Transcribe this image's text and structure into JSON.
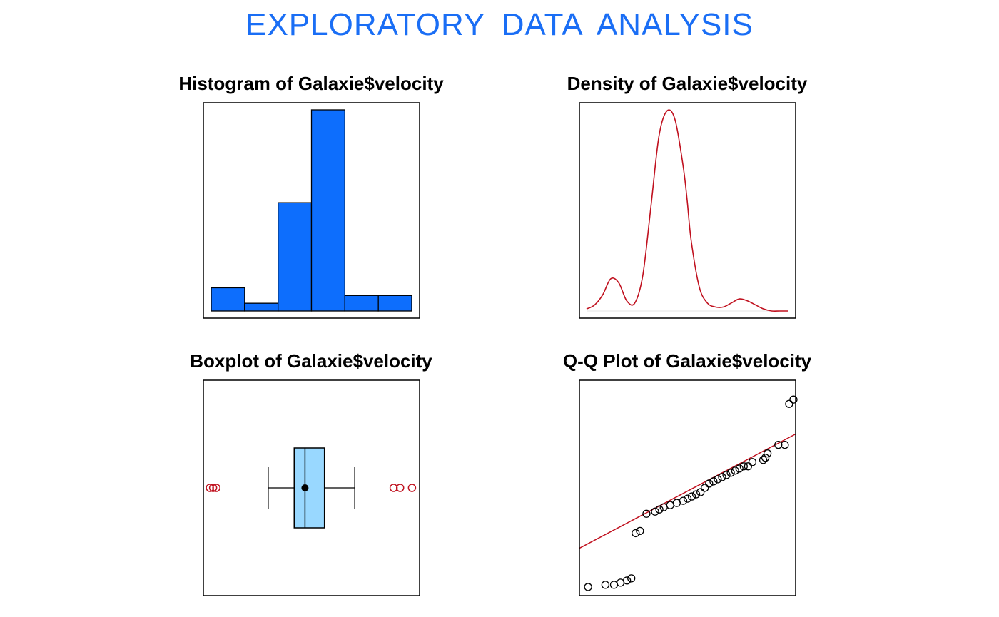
{
  "page": {
    "title": "EXPLORATORY  DATA  ANALYSIS",
    "title_color": "#1a6ef5"
  },
  "chart_data": [
    {
      "type": "bar",
      "title": "Histogram of Galaxie$velocity",
      "xlabel": "",
      "ylabel": "",
      "bin_edges": [
        0,
        1,
        2,
        3,
        4,
        5,
        6
      ],
      "counts": [
        3,
        1,
        14,
        26,
        2,
        2
      ],
      "ylim": [
        0,
        27
      ],
      "fill_color": "#0d6efd",
      "axes_shown": false
    },
    {
      "type": "line",
      "title": "Density of Galaxie$velocity",
      "xlabel": "",
      "ylabel": "",
      "x": [
        0,
        0.04,
        0.08,
        0.12,
        0.16,
        0.2,
        0.24,
        0.28,
        0.32,
        0.36,
        0.4,
        0.44,
        0.48,
        0.5,
        0.52,
        0.56,
        0.6,
        0.64,
        0.68,
        0.72,
        0.76,
        0.8,
        0.84,
        0.88,
        0.92,
        0.96,
        1.0
      ],
      "y": [
        0.01,
        0.03,
        0.08,
        0.16,
        0.14,
        0.05,
        0.04,
        0.18,
        0.52,
        0.87,
        0.995,
        0.95,
        0.72,
        0.55,
        0.35,
        0.12,
        0.04,
        0.02,
        0.02,
        0.04,
        0.06,
        0.05,
        0.03,
        0.01,
        0.0,
        0.0,
        0.0
      ],
      "ylim": [
        0,
        1.0
      ],
      "line_color": "#c0111f",
      "axes_shown": false
    },
    {
      "type": "box",
      "title": "Boxplot of Galaxie$velocity",
      "xlabel": "",
      "ylabel": "",
      "orientation": "horizontal",
      "whisker_low": 0.3,
      "q1": 0.42,
      "median": 0.47,
      "q3": 0.56,
      "whisker_high": 0.7,
      "mean": 0.47,
      "outliers": [
        0.03,
        0.045,
        0.06,
        0.88,
        0.91,
        0.965
      ],
      "xlim": [
        0,
        1
      ],
      "box_color": "#99d8ff",
      "outlier_color": "#c0111f",
      "axes_shown": false
    },
    {
      "type": "scatter",
      "title": "Q-Q Plot of Galaxie$velocity",
      "xlabel": "",
      "ylabel": "",
      "x": [
        0.04,
        0.12,
        0.16,
        0.19,
        0.22,
        0.24,
        0.26,
        0.28,
        0.31,
        0.35,
        0.37,
        0.39,
        0.42,
        0.45,
        0.48,
        0.5,
        0.52,
        0.54,
        0.56,
        0.58,
        0.6,
        0.62,
        0.64,
        0.66,
        0.68,
        0.7,
        0.72,
        0.74,
        0.76,
        0.78,
        0.8,
        0.85,
        0.86,
        0.87,
        0.92,
        0.95,
        0.97,
        0.99
      ],
      "y": [
        0.04,
        0.05,
        0.05,
        0.06,
        0.07,
        0.08,
        0.29,
        0.3,
        0.38,
        0.39,
        0.4,
        0.41,
        0.42,
        0.43,
        0.44,
        0.45,
        0.46,
        0.47,
        0.48,
        0.5,
        0.52,
        0.53,
        0.54,
        0.55,
        0.56,
        0.57,
        0.58,
        0.59,
        0.6,
        0.6,
        0.62,
        0.63,
        0.64,
        0.66,
        0.7,
        0.7,
        0.89,
        0.91
      ],
      "ref_line": {
        "y_at_x0": 0.22,
        "y_at_x1": 0.75
      },
      "xlim": [
        0,
        1.0
      ],
      "ylim": [
        0,
        1.0
      ],
      "point_color": "#000000",
      "line_color": "#c0111f",
      "axes_shown": false
    }
  ]
}
